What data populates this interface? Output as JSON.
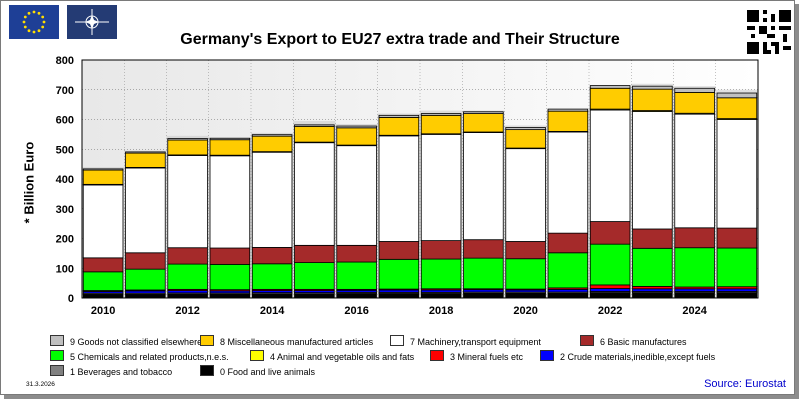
{
  "page": {
    "date_stamp": "31.3.2026",
    "source": "Source: Eurostat"
  },
  "chart_data": {
    "type": "bar",
    "stacked": true,
    "title": "Germany's Export to EU27 extra trade and Their Structure",
    "ylabel": "* Billion Euro",
    "xlabel": "",
    "ylim": [
      0,
      800
    ],
    "yticks": [
      0,
      100,
      200,
      300,
      400,
      500,
      600,
      700,
      800
    ],
    "categories": [
      "2010",
      "2011",
      "2012",
      "2013",
      "2014",
      "2015",
      "2016",
      "2017",
      "2018",
      "2019",
      "2020",
      "2021",
      "2022",
      "2023",
      "2024",
      "2025"
    ],
    "x_tick_labels": [
      "2010",
      "",
      "2012",
      "",
      "2014",
      "",
      "2016",
      "",
      "2018",
      "",
      "2020",
      "",
      "2022",
      "",
      "2024",
      ""
    ],
    "grid": true,
    "series": [
      {
        "name": "0 Food and live animals",
        "color": "#000000",
        "values": [
          12,
          12,
          13,
          13,
          14,
          14,
          15,
          15,
          15,
          16,
          16,
          16,
          18,
          18,
          18,
          18
        ]
      },
      {
        "name": "1 Beverages and tobacco",
        "color": "#808080",
        "values": [
          4,
          4,
          4,
          4,
          4,
          4,
          4,
          4,
          4,
          4,
          4,
          4,
          4,
          4,
          4,
          4
        ]
      },
      {
        "name": "2 Crude materials,inedible,except fuels",
        "color": "#0000ff",
        "values": [
          6,
          8,
          8,
          7,
          7,
          7,
          7,
          8,
          8,
          8,
          7,
          9,
          10,
          9,
          9,
          9
        ]
      },
      {
        "name": "3 Mineral fuels etc",
        "color": "#ff0000",
        "values": [
          3,
          3,
          4,
          4,
          4,
          4,
          3,
          3,
          4,
          3,
          3,
          5,
          12,
          8,
          6,
          7
        ]
      },
      {
        "name": "5 Chemicals and related products,n.e.s.",
        "color": "#00ff00",
        "values": [
          63,
          70,
          85,
          85,
          86,
          90,
          92,
          100,
          100,
          103,
          102,
          118,
          137,
          128,
          132,
          130
        ]
      },
      {
        "name": "6 Basic manufactures",
        "color": "#a52a2a",
        "values": [
          47,
          55,
          55,
          55,
          55,
          58,
          56,
          60,
          62,
          62,
          58,
          66,
          76,
          65,
          67,
          67
        ]
      },
      {
        "name": "7 Machinery,transport equipment",
        "color": "#ffffff",
        "values": [
          245,
          285,
          310,
          310,
          320,
          345,
          335,
          355,
          357,
          360,
          312,
          340,
          375,
          395,
          382,
          365
        ]
      },
      {
        "name": "4 Animal and vegetable oils and fats",
        "color": "#ffff00",
        "values": [
          2,
          2,
          2,
          2,
          2,
          2,
          2,
          2,
          2,
          2,
          2,
          2,
          3,
          3,
          3,
          3
        ]
      },
      {
        "name": "8 Miscellaneous manufactured articles",
        "color": "#ffcc00",
        "values": [
          48,
          48,
          50,
          52,
          52,
          53,
          58,
          60,
          62,
          62,
          62,
          68,
          70,
          72,
          70,
          70
        ]
      },
      {
        "name": "9 Goods not classified elsewhere",
        "color": "#c0c0c0",
        "values": [
          4,
          4,
          5,
          5,
          5,
          5,
          6,
          7,
          6,
          6,
          7,
          7,
          9,
          10,
          14,
          16
        ]
      }
    ],
    "background_trend": {
      "color": "#c8c8c8",
      "values": [
        440,
        495,
        545,
        540,
        555,
        595,
        585,
        620,
        630,
        630,
        580,
        632,
        710,
        720,
        712,
        700
      ]
    },
    "legend": [
      {
        "label": "9 Goods not classified elsewhere",
        "color": "#c0c0c0"
      },
      {
        "label": "8 Miscellaneous manufactured articles",
        "color": "#ffcc00"
      },
      {
        "label": "7 Machinery,transport equipment",
        "color": "#ffffff"
      },
      {
        "label": "6 Basic manufactures",
        "color": "#a52a2a"
      },
      {
        "label": "5 Chemicals and related products,n.e.s.",
        "color": "#00ff00"
      },
      {
        "label": "4 Animal and vegetable oils and fats",
        "color": "#ffff00"
      },
      {
        "label": "3 Mineral fuels etc",
        "color": "#ff0000"
      },
      {
        "label": "2 Crude materials,inedible,except fuels",
        "color": "#0000ff"
      },
      {
        "label": "1 Beverages and tobacco",
        "color": "#808080"
      },
      {
        "label": "0 Food and live animals",
        "color": "#000000"
      }
    ]
  }
}
